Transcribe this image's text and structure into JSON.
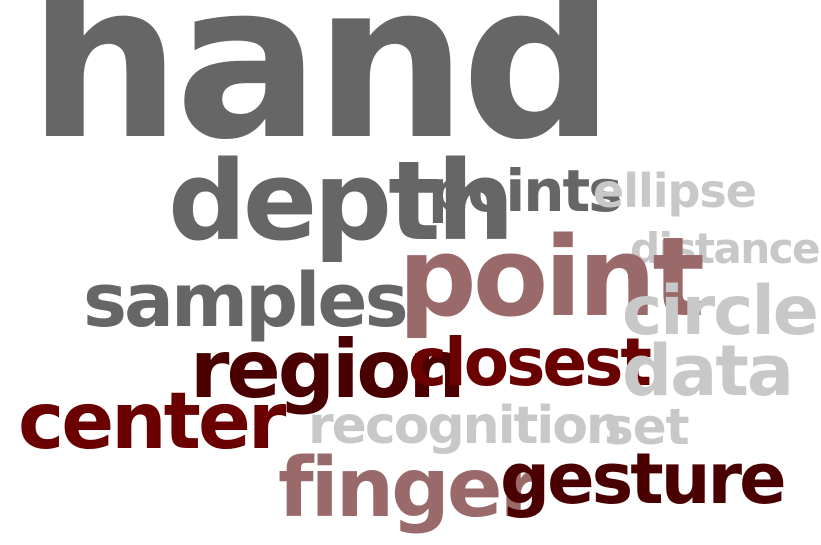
{
  "words": [
    {
      "key": "hand",
      "text": "hand",
      "color": "#666666"
    },
    {
      "key": "depth",
      "text": "depth",
      "color": "#666666"
    },
    {
      "key": "points",
      "text": "points",
      "color": "#666666"
    },
    {
      "key": "ellipse",
      "text": "ellipse",
      "color": "#c8c8c8"
    },
    {
      "key": "distance",
      "text": "distance",
      "color": "#c8c8c8"
    },
    {
      "key": "samples",
      "text": "samples",
      "color": "#666666"
    },
    {
      "key": "point",
      "text": "point",
      "color": "#9a6a6a"
    },
    {
      "key": "circle",
      "text": "circle",
      "color": "#c8c8c8"
    },
    {
      "key": "region",
      "text": "region",
      "color": "#4a0000"
    },
    {
      "key": "closest",
      "text": "closest",
      "color": "#6a0000"
    },
    {
      "key": "data",
      "text": "data",
      "color": "#c8c8c8"
    },
    {
      "key": "center",
      "text": "center",
      "color": "#6a0000"
    },
    {
      "key": "recognition",
      "text": "recognition",
      "color": "#c8c8c8"
    },
    {
      "key": "set",
      "text": "set",
      "color": "#c8c8c8"
    },
    {
      "key": "finger",
      "text": "finger",
      "color": "#9a6a6a"
    },
    {
      "key": "gesture",
      "text": "gesture",
      "color": "#4a0000"
    }
  ]
}
